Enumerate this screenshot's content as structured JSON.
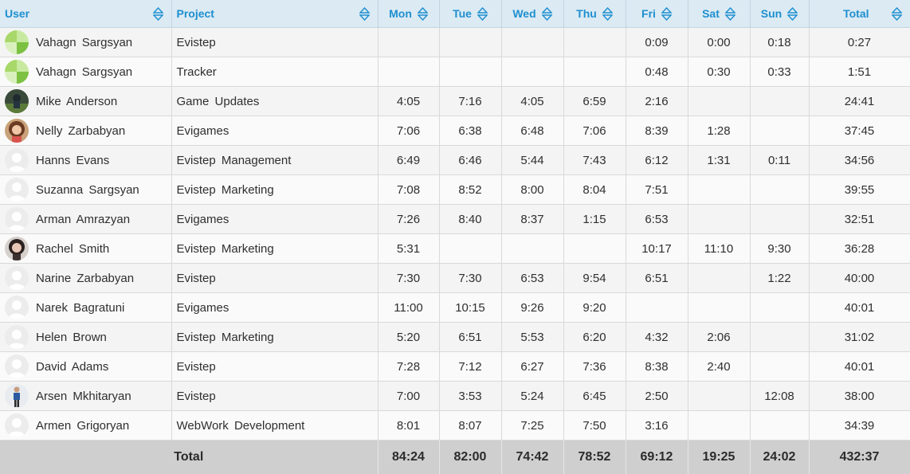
{
  "columns": {
    "user": "User",
    "project": "Project",
    "mon": "Mon",
    "tue": "Tue",
    "wed": "Wed",
    "thu": "Thu",
    "fri": "Fri",
    "sat": "Sat",
    "sun": "Sun",
    "total": "Total"
  },
  "sort_icon": "sort-arrows-icon",
  "rows": [
    {
      "user": "Vahagn Sargsyan",
      "avatar": "green-logo",
      "project": "Evistep",
      "mon": "",
      "tue": "",
      "wed": "",
      "thu": "",
      "fri": "0:09",
      "sat": "0:00",
      "sun": "0:18",
      "total": "0:27"
    },
    {
      "user": "Vahagn Sargsyan",
      "avatar": "green-logo",
      "project": "Tracker",
      "mon": "",
      "tue": "",
      "wed": "",
      "thu": "",
      "fri": "0:48",
      "sat": "0:30",
      "sun": "0:33",
      "total": "1:51"
    },
    {
      "user": "Mike Anderson",
      "avatar": "photo-dark",
      "project": "Game Updates",
      "mon": "4:05",
      "tue": "7:16",
      "wed": "4:05",
      "thu": "6:59",
      "fri": "2:16",
      "sat": "",
      "sun": "",
      "total": "24:41"
    },
    {
      "user": "Nelly Zarbabyan",
      "avatar": "photo-woman",
      "project": "Evigames",
      "mon": "7:06",
      "tue": "6:38",
      "wed": "6:48",
      "thu": "7:06",
      "fri": "8:39",
      "sat": "1:28",
      "sun": "",
      "total": "37:45"
    },
    {
      "user": "Hanns Evans",
      "avatar": "default-person",
      "project": "Evistep Management",
      "mon": "6:49",
      "tue": "6:46",
      "wed": "5:44",
      "thu": "7:43",
      "fri": "6:12",
      "sat": "1:31",
      "sun": "0:11",
      "total": "34:56"
    },
    {
      "user": "Suzanna Sargsyan",
      "avatar": "default-person",
      "project": "Evistep Marketing",
      "mon": "7:08",
      "tue": "8:52",
      "wed": "8:00",
      "thu": "8:04",
      "fri": "7:51",
      "sat": "",
      "sun": "",
      "total": "39:55"
    },
    {
      "user": "Arman Amrazyan",
      "avatar": "default-person",
      "project": "Evigames",
      "mon": "7:26",
      "tue": "8:40",
      "wed": "8:37",
      "thu": "1:15",
      "fri": "6:53",
      "sat": "",
      "sun": "",
      "total": "32:51"
    },
    {
      "user": "Rachel Smith",
      "avatar": "photo-woman-dark",
      "project": "Evistep Marketing",
      "mon": "5:31",
      "tue": "",
      "wed": "",
      "thu": "",
      "fri": "10:17",
      "sat": "11:10",
      "sun": "9:30",
      "total": "36:28"
    },
    {
      "user": "Narine Zarbabyan",
      "avatar": "default-person",
      "project": "Evistep",
      "mon": "7:30",
      "tue": "7:30",
      "wed": "6:53",
      "thu": "9:54",
      "fri": "6:51",
      "sat": "",
      "sun": "1:22",
      "total": "40:00"
    },
    {
      "user": "Narek Bagratuni",
      "avatar": "default-person",
      "project": "Evigames",
      "mon": "11:00",
      "tue": "10:15",
      "wed": "9:26",
      "thu": "9:20",
      "fri": "",
      "sat": "",
      "sun": "",
      "total": "40:01"
    },
    {
      "user": "Helen Brown",
      "avatar": "default-person",
      "project": "Evistep Marketing",
      "mon": "5:20",
      "tue": "6:51",
      "wed": "5:53",
      "thu": "6:20",
      "fri": "4:32",
      "sat": "2:06",
      "sun": "",
      "total": "31:02"
    },
    {
      "user": "David Adams",
      "avatar": "default-person",
      "project": "Evistep",
      "mon": "7:28",
      "tue": "7:12",
      "wed": "6:27",
      "thu": "7:36",
      "fri": "8:38",
      "sat": "2:40",
      "sun": "",
      "total": "40:01"
    },
    {
      "user": "Arsen Mkhitaryan",
      "avatar": "photo-man-standing",
      "project": "Evistep",
      "mon": "7:00",
      "tue": "3:53",
      "wed": "5:24",
      "thu": "6:45",
      "fri": "2:50",
      "sat": "",
      "sun": "12:08",
      "total": "38:00"
    },
    {
      "user": "Armen Grigoryan",
      "avatar": "default-person",
      "project": "WebWork Development",
      "mon": "8:01",
      "tue": "8:07",
      "wed": "7:25",
      "thu": "7:50",
      "fri": "3:16",
      "sat": "",
      "sun": "",
      "total": "34:39"
    }
  ],
  "footer": {
    "label": "Total",
    "mon": "84:24",
    "tue": "82:00",
    "wed": "74:42",
    "thu": "78:52",
    "fri": "69:12",
    "sat": "19:25",
    "sun": "24:02",
    "total": "432:37"
  },
  "colors": {
    "header_bg": "#dbeaf3",
    "header_text": "#1e8fd0",
    "footer_bg": "#cfcfcf"
  }
}
